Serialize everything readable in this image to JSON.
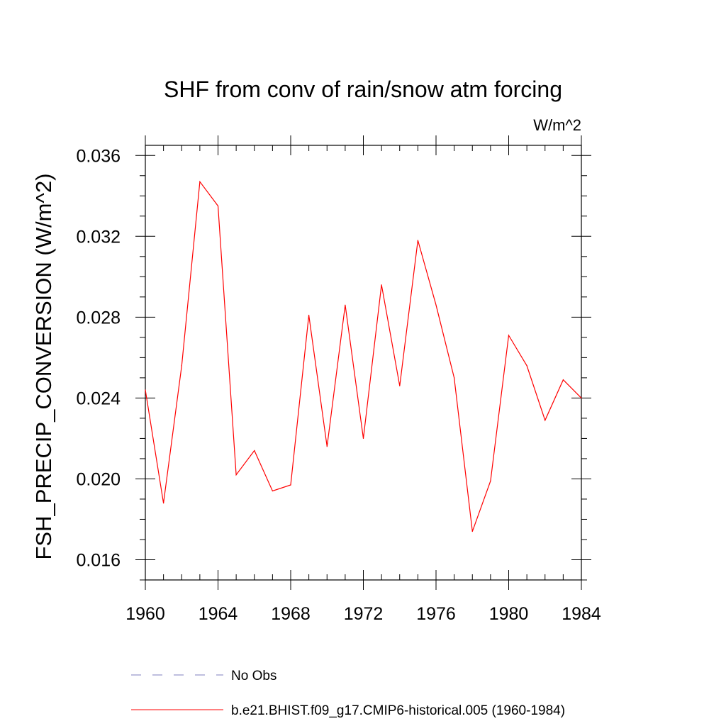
{
  "chart_data": {
    "type": "line",
    "title": "SHF from conv of rain/snow atm forcing",
    "units": "W/m^2",
    "ylabel": "FSH_PRECIP_CONVERSION  (W/m^2)",
    "xlabel": "",
    "xlim": [
      1960,
      1984
    ],
    "ylim": [
      0.015,
      0.0365
    ],
    "xticks": [
      "1960",
      "1964",
      "1968",
      "1972",
      "1976",
      "1980",
      "1984"
    ],
    "yticks": [
      "0.016",
      "0.020",
      "0.024",
      "0.028",
      "0.032",
      "0.036"
    ],
    "grid": false,
    "legend_position": "bottom",
    "series": [
      {
        "name": "b.e21.BHIST.f09_g17.CMIP6-historical.005 (1960-1984)",
        "color": "#ff0000",
        "style": "solid",
        "x": [
          1960,
          1961,
          1962,
          1963,
          1964,
          1965,
          1966,
          1967,
          1968,
          1969,
          1970,
          1971,
          1972,
          1973,
          1974,
          1975,
          1976,
          1977,
          1978,
          1979,
          1980,
          1981,
          1982,
          1983,
          1984
        ],
        "y": [
          0.0244,
          0.0188,
          0.0256,
          0.0347,
          0.0335,
          0.0202,
          0.0214,
          0.0194,
          0.0197,
          0.0281,
          0.0216,
          0.0286,
          0.022,
          0.0296,
          0.0246,
          0.0318,
          0.0286,
          0.025,
          0.0174,
          0.0199,
          0.0271,
          0.0256,
          0.0229,
          0.0249,
          0.024
        ]
      }
    ],
    "legend_entries": [
      {
        "label": "No Obs",
        "color": "#7f7fbf",
        "style": "dashed"
      },
      {
        "label": "b.e21.BHIST.f09_g17.CMIP6-historical.005 (1960-1984)",
        "color": "#ff0000",
        "style": "solid"
      }
    ]
  }
}
